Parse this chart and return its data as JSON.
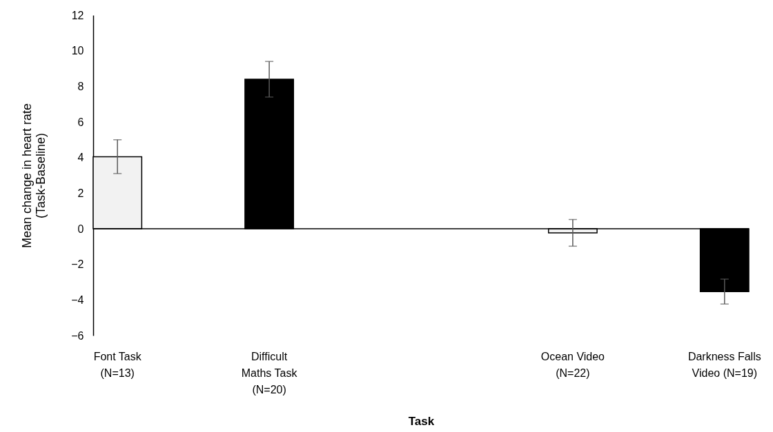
{
  "chart_data": {
    "type": "bar",
    "xlabel": "Task",
    "ylabel": "Mean change  in heart rate\n(Task-Baseline)",
    "categories": [
      "Font Task (N=13)",
      "Difficult Maths Task (N=20)",
      null,
      "Ocean Video (N=22)",
      "Darkness Falls Video (N=19)"
    ],
    "values": [
      4.05,
      8.4,
      null,
      -0.23,
      -3.53
    ],
    "colors": [
      "#f2f2f2",
      "#000000",
      "#ffffff",
      "#f2f2f2",
      "#000000"
    ],
    "errors": [
      0.95,
      1.0,
      null,
      0.75,
      0.7
    ],
    "ref_lines": [
      {
        "axis": "y",
        "value": 0,
        "color": "#000000"
      }
    ],
    "ylim": [
      -6,
      12
    ],
    "yticks": [
      -6,
      -4,
      -2,
      0,
      2,
      4,
      6,
      8,
      10,
      12
    ]
  }
}
